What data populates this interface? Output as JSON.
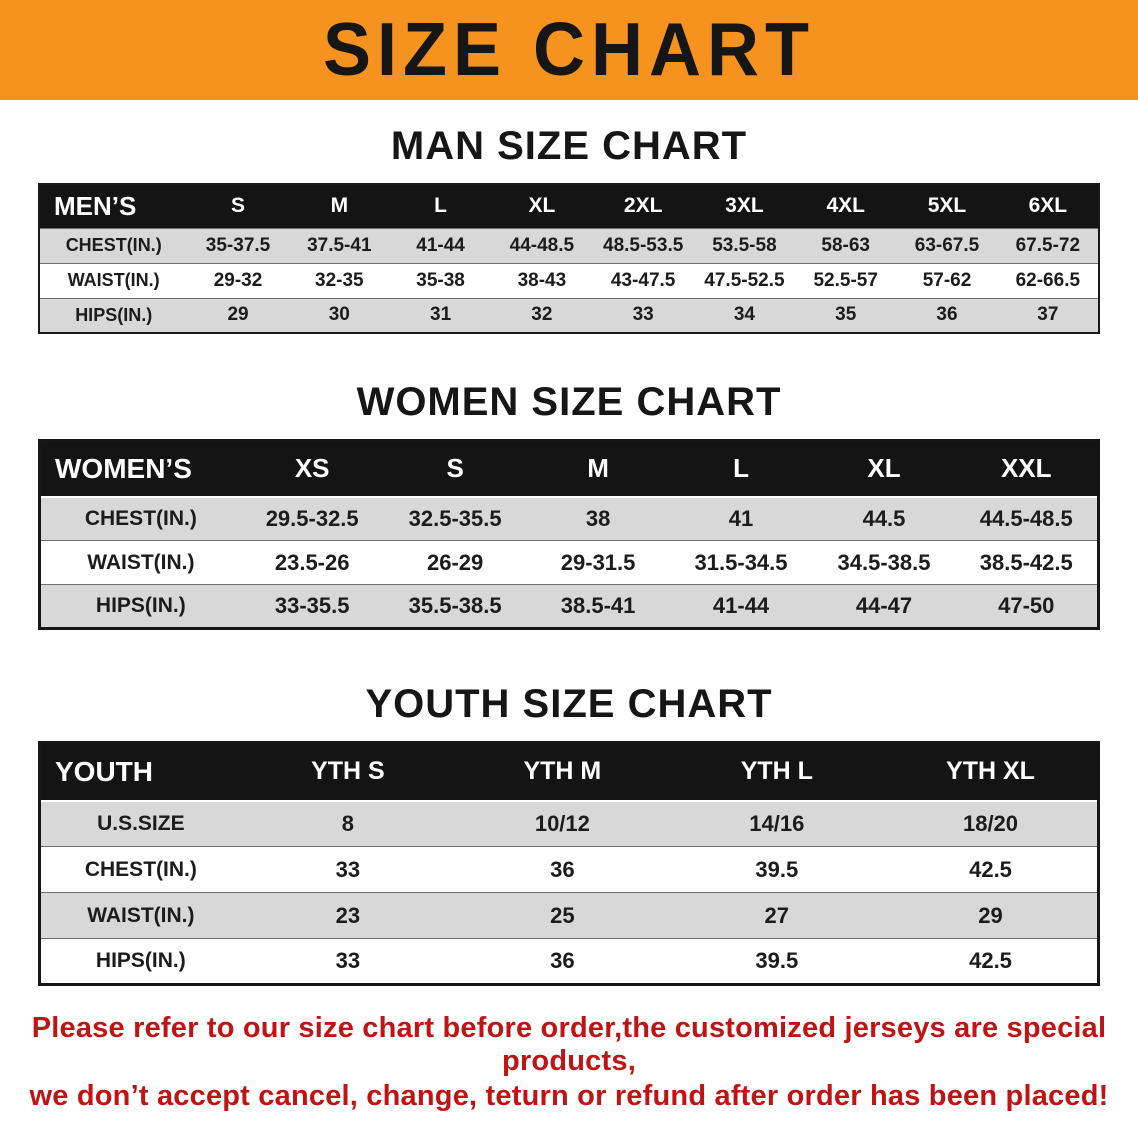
{
  "colors": {
    "banner_bg": "#F6921E",
    "table_header_bg": "#141414",
    "row_alt_bg": "#D8D8D8",
    "footer_text": "#C01414"
  },
  "banner": {
    "title": "SIZE CHART"
  },
  "sections": [
    {
      "id": "men",
      "title": "MAN SIZE CHART",
      "table": {
        "header": [
          "MEN’S",
          "S",
          "M",
          "L",
          "XL",
          "2XL",
          "3XL",
          "4XL",
          "5XL",
          "6XL"
        ],
        "rows": [
          [
            "CHEST(IN.)",
            "35-37.5",
            "37.5-41",
            "41-44",
            "44-48.5",
            "48.5-53.5",
            "53.5-58",
            "58-63",
            "63-67.5",
            "67.5-72"
          ],
          [
            "WAIST(IN.)",
            "29-32",
            "32-35",
            "35-38",
            "38-43",
            "43-47.5",
            "47.5-52.5",
            "52.5-57",
            "57-62",
            "62-66.5"
          ],
          [
            "HIPS(IN.)",
            "29",
            "30",
            "31",
            "32",
            "33",
            "34",
            "35",
            "36",
            "37"
          ]
        ]
      }
    },
    {
      "id": "women",
      "title": "WOMEN SIZE CHART",
      "table": {
        "header": [
          "WOMEN’S",
          "XS",
          "S",
          "M",
          "L",
          "XL",
          "XXL"
        ],
        "rows": [
          [
            "CHEST(IN.)",
            "29.5-32.5",
            "32.5-35.5",
            "38",
            "41",
            "44.5",
            "44.5-48.5"
          ],
          [
            "WAIST(IN.)",
            "23.5-26",
            "26-29",
            "29-31.5",
            "31.5-34.5",
            "34.5-38.5",
            "38.5-42.5"
          ],
          [
            "HIPS(IN.)",
            "33-35.5",
            "35.5-38.5",
            "38.5-41",
            "41-44",
            "44-47",
            "47-50"
          ]
        ]
      }
    },
    {
      "id": "youth",
      "title": "YOUTH SIZE CHART",
      "table": {
        "header": [
          "YOUTH",
          "YTH S",
          "YTH M",
          "YTH L",
          "YTH XL"
        ],
        "rows": [
          [
            "U.S.SIZE",
            "8",
            "10/12",
            "14/16",
            "18/20"
          ],
          [
            "CHEST(IN.)",
            "33",
            "36",
            "39.5",
            "42.5"
          ],
          [
            "WAIST(IN.)",
            "23",
            "25",
            "27",
            "29"
          ],
          [
            "HIPS(IN.)",
            "33",
            "36",
            "39.5",
            "42.5"
          ]
        ]
      }
    }
  ],
  "footer": {
    "line1": "Please refer to our size chart before order,the customized jerseys are special products,",
    "line2": "we don’t accept cancel, change, teturn or refund after order has been placed!"
  }
}
